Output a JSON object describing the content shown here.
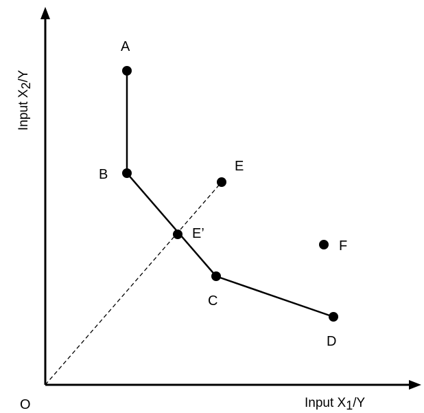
{
  "axes": {
    "origin_label": "O",
    "x_label": {
      "prefix": "Input X",
      "subscript": "1",
      "suffix": "/Y"
    },
    "y_label": {
      "prefix": "Input X",
      "subscript": "2",
      "suffix": "/Y"
    }
  },
  "points": [
    {
      "id": "A",
      "label": "A"
    },
    {
      "id": "B",
      "label": "B"
    },
    {
      "id": "E",
      "label": "E"
    },
    {
      "id": "Ep",
      "label": "E’"
    },
    {
      "id": "C",
      "label": "C"
    },
    {
      "id": "F",
      "label": "F"
    },
    {
      "id": "D",
      "label": "D"
    }
  ]
}
